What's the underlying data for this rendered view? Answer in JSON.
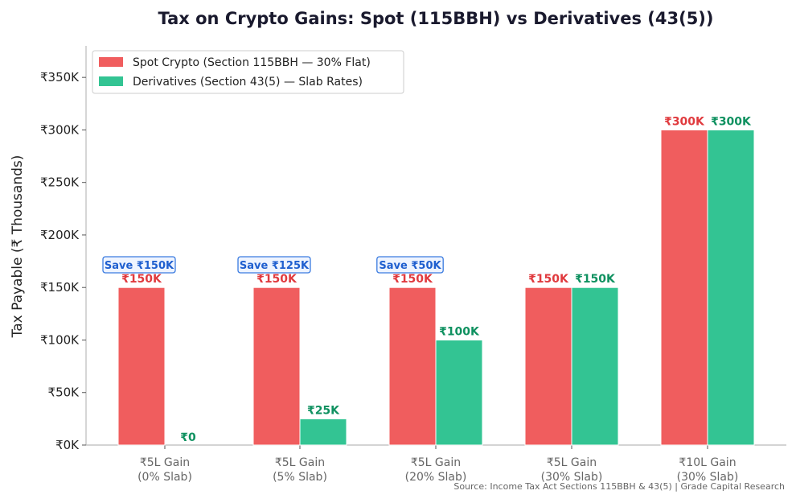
{
  "colors": {
    "spot": "#f05d5e",
    "deriv": "#33c493",
    "spot_label": "#e03a3e",
    "deriv_label": "#0f9160",
    "save_border": "#3a7be0",
    "save_bg": "#eef4ff",
    "axis": "#bbbbbb"
  },
  "chart_data": {
    "type": "bar",
    "title": "Tax on Crypto Gains: Spot (115BBH) vs Derivatives (43(5))",
    "ylabel": "Tax Payable (₹ Thousands)",
    "xlabel": "",
    "ylim": [
      0,
      380
    ],
    "yticks": [
      0,
      50,
      100,
      150,
      200,
      250,
      300,
      350
    ],
    "ytick_labels": [
      "₹0K",
      "₹50K",
      "₹100K",
      "₹150K",
      "₹200K",
      "₹250K",
      "₹300K",
      "₹350K"
    ],
    "categories": [
      [
        "₹5L Gain",
        "(0% Slab)"
      ],
      [
        "₹5L Gain",
        "(5% Slab)"
      ],
      [
        "₹5L Gain",
        "(20% Slab)"
      ],
      [
        "₹5L Gain",
        "(30% Slab)"
      ],
      [
        "₹10L Gain",
        "(30% Slab)"
      ]
    ],
    "series": [
      {
        "name": "Spot Crypto (Section 115BBH — 30% Flat)",
        "values": [
          150,
          150,
          150,
          150,
          300
        ],
        "labels": [
          "₹150K",
          "₹150K",
          "₹150K",
          "₹150K",
          "₹300K"
        ]
      },
      {
        "name": "Derivatives (Section 43(5) — Slab Rates)",
        "values": [
          0,
          25,
          100,
          150,
          300
        ],
        "labels": [
          "₹0",
          "₹25K",
          "₹100K",
          "₹150K",
          "₹300K"
        ]
      }
    ],
    "annotations": [
      "Save ₹150K",
      "Save ₹125K",
      "Save ₹50K",
      "",
      ""
    ],
    "legend_position": "top-left",
    "grid": false,
    "source": "Source: Income Tax Act Sections 115BBH & 43(5) | Grade Capital Research"
  }
}
